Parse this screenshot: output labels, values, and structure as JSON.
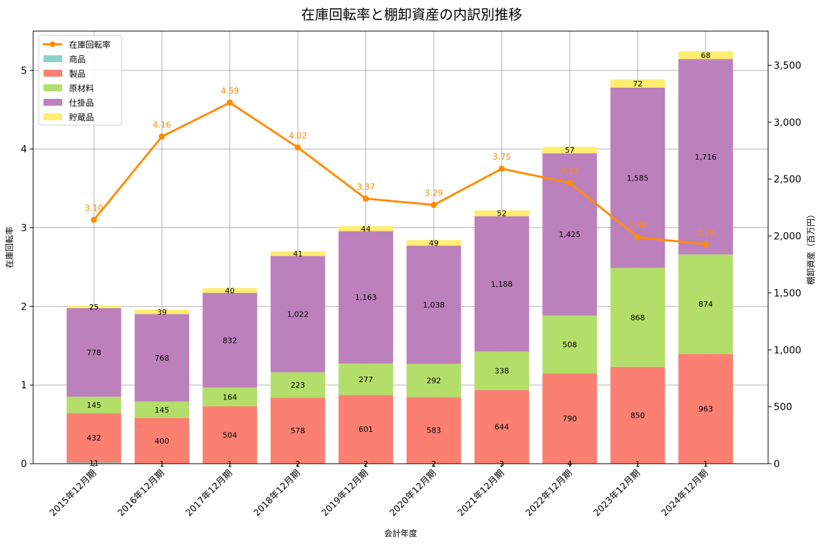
{
  "chart_data": {
    "type": "bar",
    "title": "在庫回転率と棚卸資産の内訳別推移",
    "xlabel": "会計年度",
    "ylabel_left": "在庫回転率",
    "ylabel_right": "棚卸資産（百万円）",
    "categories": [
      "2015年12月期",
      "2016年12月期",
      "2017年12月期",
      "2018年12月期",
      "2019年12月期",
      "2020年12月期",
      "2021年12月期",
      "2022年12月期",
      "2023年12月期",
      "2024年12月期"
    ],
    "ylim_left": [
      0,
      5.5
    ],
    "yticks_left": [
      "0",
      "1",
      "2",
      "3",
      "4",
      "5"
    ],
    "ylim_right": [
      0,
      3800
    ],
    "yticks_right": [
      "0",
      "500",
      "1,000",
      "1,500",
      "2,000",
      "2,500",
      "3,000",
      "3,500"
    ],
    "grid": true,
    "legend_position": "top-left",
    "line": {
      "name": "在庫回転率",
      "color": "#ff8c00",
      "values": [
        3.1,
        4.16,
        4.59,
        4.02,
        3.37,
        3.29,
        3.75,
        3.57,
        2.88,
        2.79
      ],
      "labels": [
        "3.10",
        "4.16",
        "4.59",
        "4.02",
        "3.37",
        "3.29",
        "3.75",
        "3.57",
        "2.88",
        "2.79"
      ]
    },
    "series": [
      {
        "name": "商品",
        "color": "#8dd3c7",
        "values": [
          11,
          1,
          1,
          2,
          2,
          2,
          3,
          4,
          1,
          1
        ],
        "labels": [
          "11",
          "1",
          "1",
          "2",
          "2",
          "2",
          "3",
          "4",
          "1",
          "1"
        ]
      },
      {
        "name": "製品",
        "color": "#fb8072",
        "values": [
          432,
          400,
          504,
          578,
          601,
          583,
          644,
          790,
          850,
          963
        ],
        "labels": [
          "432",
          "400",
          "504",
          "578",
          "601",
          "583",
          "644",
          "790",
          "850",
          "963"
        ]
      },
      {
        "name": "原材料",
        "color": "#b3de69",
        "values": [
          145,
          145,
          164,
          223,
          277,
          292,
          338,
          508,
          868,
          874
        ],
        "labels": [
          "145",
          "145",
          "164",
          "223",
          "277",
          "292",
          "338",
          "508",
          "868",
          "874"
        ]
      },
      {
        "name": "仕掛品",
        "color": "#bc80bd",
        "values": [
          778,
          768,
          832,
          1022,
          1163,
          1038,
          1188,
          1425,
          1585,
          1716
        ],
        "labels": [
          "778",
          "768",
          "832",
          "1,022",
          "1,163",
          "1,038",
          "1,188",
          "1,425",
          "1,585",
          "1,716"
        ]
      },
      {
        "name": "貯蔵品",
        "color": "#ffed6f",
        "values": [
          25,
          39,
          40,
          41,
          44,
          49,
          52,
          57,
          72,
          68
        ],
        "labels": [
          "25",
          "39",
          "40",
          "41",
          "44",
          "49",
          "52",
          "57",
          "72",
          "68"
        ]
      }
    ]
  }
}
